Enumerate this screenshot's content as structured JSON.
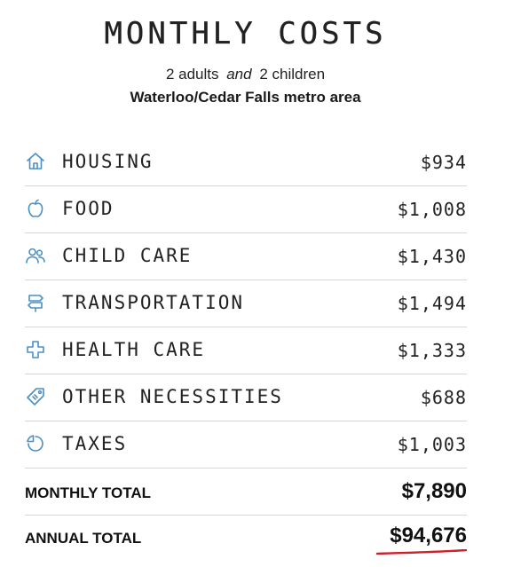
{
  "header": {
    "title": "MONTHLY COSTS",
    "adults": "2 adults",
    "conjunction": "and",
    "children": "2 children",
    "area": "Waterloo/Cedar Falls metro area"
  },
  "costs": [
    {
      "icon": "house-icon",
      "label": "HOUSING",
      "value": "$934"
    },
    {
      "icon": "apple-icon",
      "label": "FOOD",
      "value": "$1,008"
    },
    {
      "icon": "people-icon",
      "label": "CHILD CARE",
      "value": "$1,430"
    },
    {
      "icon": "signpost-icon",
      "label": "TRANSPORTATION",
      "value": "$1,494"
    },
    {
      "icon": "medical-cross-icon",
      "label": "HEALTH CARE",
      "value": "$1,333"
    },
    {
      "icon": "price-tag-icon",
      "label": "OTHER NECESSITIES",
      "value": "$688"
    },
    {
      "icon": "pie-chart-icon",
      "label": "TAXES",
      "value": "$1,003"
    }
  ],
  "totals": {
    "monthly_label": "MONTHLY TOTAL",
    "monthly_value": "$7,890",
    "annual_label": "ANNUAL TOTAL",
    "annual_value": "$94,676"
  },
  "colors": {
    "icon": "#4a90c4",
    "accent_underline": "#d0202a",
    "divider": "#d6d6d6"
  }
}
